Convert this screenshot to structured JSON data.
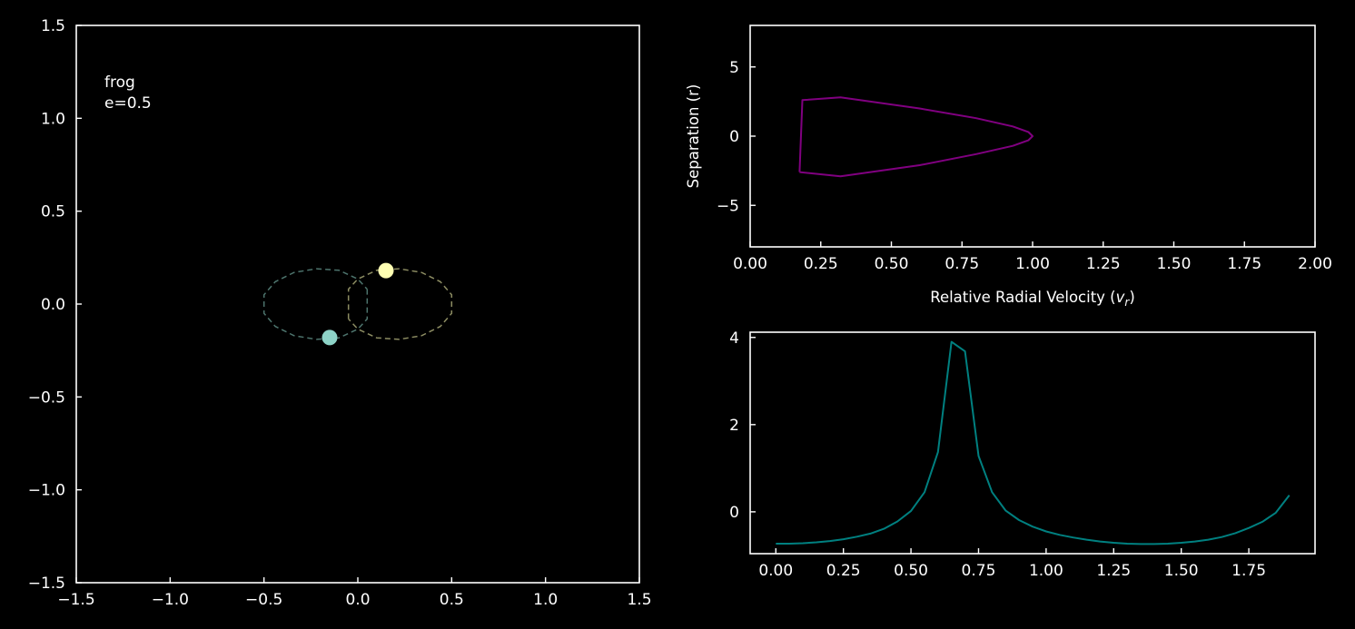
{
  "chart_data": [
    {
      "type": "line",
      "annotation": [
        "frog",
        "e=0.5"
      ],
      "xlim": [
        -1.5,
        1.5
      ],
      "ylim": [
        -1.5,
        1.5
      ],
      "xticks": [
        -1.5,
        -1.0,
        -0.5,
        0.0,
        0.5,
        1.0,
        1.5
      ],
      "yticks": [
        -1.5,
        -1.0,
        -0.5,
        0.0,
        0.5,
        1.0,
        1.5
      ],
      "xtick_labels": [
        "−1.5",
        "−1.0",
        "−0.5",
        "0.0",
        "0.5",
        "1.0",
        "1.5"
      ],
      "ytick_labels": [
        "−1.5",
        "−1.0",
        "−0.5",
        "0.0",
        "0.5",
        "1.0",
        "1.5"
      ],
      "xlabel": "",
      "ylabel": "",
      "series": [
        {
          "style": "dashed",
          "color": "#8dd3c7",
          "points": [
            [
              0.05,
              0.08
            ],
            [
              0.05,
              -0.08
            ],
            [
              0.0,
              -0.135
            ],
            [
              -0.1,
              -0.182
            ],
            [
              -0.22,
              -0.19
            ],
            [
              -0.34,
              -0.17
            ],
            [
              -0.44,
              -0.12
            ],
            [
              -0.5,
              -0.05
            ],
            [
              -0.5,
              0.05
            ],
            [
              -0.44,
              0.12
            ],
            [
              -0.34,
              0.17
            ],
            [
              -0.22,
              0.19
            ],
            [
              -0.1,
              0.182
            ],
            [
              0.0,
              0.135
            ],
            [
              0.05,
              0.08
            ]
          ]
        },
        {
          "style": "dashed",
          "color": "#ffffb3",
          "points": [
            [
              -0.05,
              -0.08
            ],
            [
              -0.05,
              0.08
            ],
            [
              0.0,
              0.135
            ],
            [
              0.1,
              0.182
            ],
            [
              0.22,
              0.19
            ],
            [
              0.34,
              0.17
            ],
            [
              0.44,
              0.12
            ],
            [
              0.5,
              0.05
            ],
            [
              0.5,
              -0.05
            ],
            [
              0.44,
              -0.12
            ],
            [
              0.34,
              -0.17
            ],
            [
              0.22,
              -0.19
            ],
            [
              0.1,
              -0.182
            ],
            [
              0.0,
              -0.135
            ],
            [
              -0.05,
              -0.08
            ]
          ]
        }
      ],
      "markers": [
        {
          "x": -0.15,
          "y": -0.18,
          "color": "#8dd3c7"
        },
        {
          "x": 0.15,
          "y": 0.18,
          "color": "#ffffb3"
        }
      ]
    },
    {
      "type": "line",
      "xlabel_prefix": "Relative Radial Velocity (",
      "xlabel_var": "v",
      "xlabel_sub": "r",
      "xlabel_suffix": ")",
      "ylabel": "Separation (r)",
      "xlim": [
        0.0,
        2.0
      ],
      "ylim": [
        -8,
        8
      ],
      "xticks": [
        0.0,
        0.25,
        0.5,
        0.75,
        1.0,
        1.25,
        1.5,
        1.75,
        2.0
      ],
      "yticks": [
        -5,
        0,
        5
      ],
      "xtick_labels": [
        "0.00",
        "0.25",
        "0.50",
        "0.75",
        "1.00",
        "1.25",
        "1.50",
        "1.75",
        "2.00"
      ],
      "ytick_labels": [
        "−5",
        "0",
        "5"
      ],
      "series": [
        {
          "color": "#800080",
          "points": [
            [
              0.175,
              -2.6
            ],
            [
              0.185,
              2.6
            ],
            [
              0.32,
              2.8
            ],
            [
              0.6,
              2.0
            ],
            [
              0.8,
              1.3
            ],
            [
              0.93,
              0.7
            ],
            [
              0.985,
              0.3
            ],
            [
              1.0,
              0.0
            ],
            [
              0.985,
              -0.3
            ],
            [
              0.93,
              -0.7
            ],
            [
              0.8,
              -1.3
            ],
            [
              0.6,
              -2.1
            ],
            [
              0.32,
              -2.9
            ],
            [
              0.175,
              -2.6
            ]
          ]
        }
      ]
    },
    {
      "type": "line",
      "xlabel": "",
      "ylabel": "",
      "xlim": [
        -0.095,
        1.995
      ],
      "ylim": [
        -0.96,
        4.12
      ],
      "xticks": [
        0.0,
        0.25,
        0.5,
        0.75,
        1.0,
        1.25,
        1.5,
        1.75
      ],
      "yticks": [
        0,
        2,
        4
      ],
      "xtick_labels": [
        "0.00",
        "0.25",
        "0.50",
        "0.75",
        "1.00",
        "1.25",
        "1.50",
        "1.75"
      ],
      "ytick_labels": [
        "0",
        "2",
        "4"
      ],
      "series": [
        {
          "color": "#008080",
          "x": [
            0.0,
            0.05,
            0.1,
            0.15,
            0.2,
            0.25,
            0.3,
            0.35,
            0.4,
            0.45,
            0.5,
            0.55,
            0.6,
            0.65,
            0.7,
            0.75,
            0.8,
            0.85,
            0.9,
            0.95,
            1.0,
            1.05,
            1.1,
            1.15,
            1.2,
            1.25,
            1.3,
            1.35,
            1.4,
            1.45,
            1.5,
            1.55,
            1.6,
            1.65,
            1.7,
            1.75,
            1.8,
            1.85,
            1.9
          ],
          "y": [
            -0.73,
            -0.73,
            -0.72,
            -0.7,
            -0.67,
            -0.63,
            -0.57,
            -0.5,
            -0.39,
            -0.22,
            0.02,
            0.45,
            1.37,
            3.9,
            3.68,
            1.28,
            0.45,
            0.03,
            -0.19,
            -0.34,
            -0.45,
            -0.53,
            -0.59,
            -0.64,
            -0.68,
            -0.71,
            -0.73,
            -0.74,
            -0.74,
            -0.73,
            -0.71,
            -0.68,
            -0.64,
            -0.58,
            -0.49,
            -0.37,
            -0.23,
            -0.02,
            0.38
          ]
        }
      ]
    }
  ]
}
